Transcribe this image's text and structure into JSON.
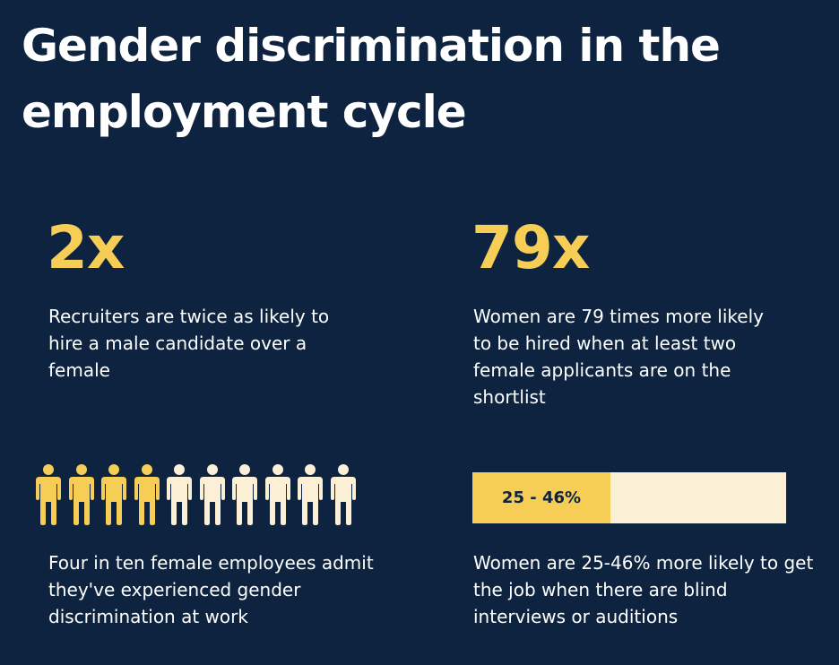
{
  "title": "Gender discrimination in the employment cycle",
  "stats": {
    "hire_ratio": {
      "value": "2x",
      "text": "Recruiters are twice as likely to hire a male candidate over a female"
    },
    "shortlist": {
      "value": "79x",
      "text": "Women are 79 times more likely to be hired when at least two female applicants are on the shortlist"
    },
    "discrimination": {
      "filled": 4,
      "total": 10,
      "text": "Four in ten female employees admit they've experienced gender discrimination at work"
    },
    "blind_interviews": {
      "label": "25 - 46%",
      "fill_fraction": 0.44,
      "text": "Women are 25-46% more likely to get the job when there are blind interviews or auditions"
    }
  },
  "colors": {
    "background": "#0e2340",
    "accent": "#f6cd55",
    "light": "#fbefd6",
    "text": "#ffffff"
  }
}
